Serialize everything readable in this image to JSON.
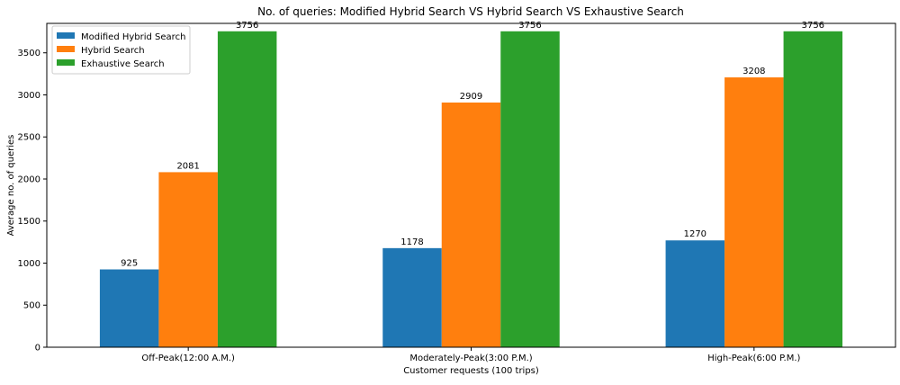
{
  "chart_data": {
    "type": "bar",
    "title": "No. of queries: Modified Hybrid Search VS Hybrid Search VS Exhaustive Search",
    "xlabel": "Customer requests (100 trips)",
    "ylabel": "Average no. of queries",
    "categories": [
      "Off-Peak(12:00 A.M.)",
      "Moderately-Peak(3:00 P.M.)",
      "High-Peak(6:00 P.M.)"
    ],
    "series": [
      {
        "name": "Modified Hybrid Search",
        "values": [
          925,
          1178,
          1270
        ],
        "color": "#1f77b4"
      },
      {
        "name": "Hybrid Search",
        "values": [
          2081,
          2909,
          3208
        ],
        "color": "#ff7f0e"
      },
      {
        "name": "Exhaustive Search",
        "values": [
          3756,
          3756,
          3756
        ],
        "color": "#2ca02c"
      }
    ],
    "ylim": [
      0,
      3850
    ],
    "yticks": [
      0,
      500,
      1000,
      1500,
      2000,
      2500,
      3000,
      3500
    ],
    "legend_position": "top-left",
    "grid": false
  }
}
